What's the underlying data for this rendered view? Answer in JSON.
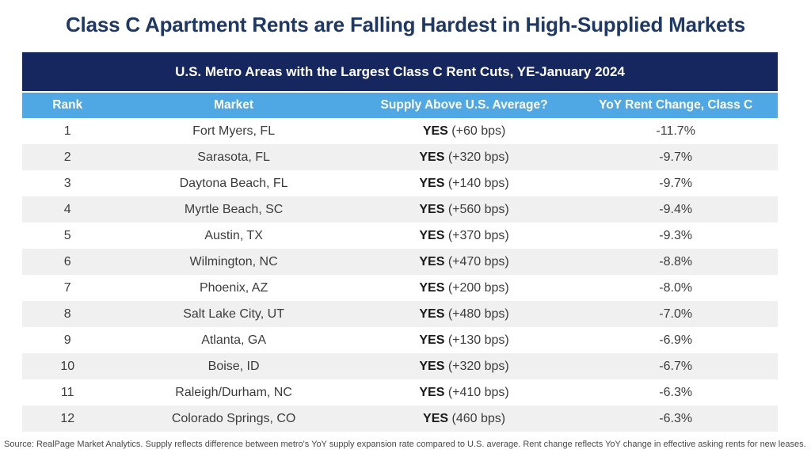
{
  "title": "Class C Apartment Rents are Falling Hardest in High-Supplied Markets",
  "footer": "Source: RealPage Market Analytics. Supply reflects difference between metro's YoY supply expansion rate compared to U.S. average. Rent change reflects YoY change in effective asking rents for new leases.",
  "colors": {
    "title_text": "#1F3864",
    "navy_header_bg": "#16265E",
    "blue_column_header_bg": "#4FA8E3",
    "alt_row_bg": "#F0F0F0",
    "body_text": "#3C3C3C"
  },
  "chart_data": {
    "type": "table",
    "title": "U.S. Metro Areas with the Largest Class C Rent Cuts, YE-January 2024",
    "columns": [
      "Rank",
      "Market",
      "Supply Above U.S. Average?",
      "YoY Rent Change, Class C"
    ],
    "rows": [
      {
        "rank": "1",
        "market": "Fort Myers, FL",
        "supply_flag": "YES",
        "supply_detail": "(+60 bps)",
        "yoy_rent_change": "-11.7%"
      },
      {
        "rank": "2",
        "market": "Sarasota, FL",
        "supply_flag": "YES",
        "supply_detail": "(+320 bps)",
        "yoy_rent_change": "-9.7%"
      },
      {
        "rank": "3",
        "market": "Daytona Beach, FL",
        "supply_flag": "YES",
        "supply_detail": "(+140 bps)",
        "yoy_rent_change": "-9.7%"
      },
      {
        "rank": "4",
        "market": "Myrtle Beach, SC",
        "supply_flag": "YES",
        "supply_detail": "(+560 bps)",
        "yoy_rent_change": "-9.4%"
      },
      {
        "rank": "5",
        "market": "Austin, TX",
        "supply_flag": "YES",
        "supply_detail": "(+370 bps)",
        "yoy_rent_change": "-9.3%"
      },
      {
        "rank": "6",
        "market": "Wilmington, NC",
        "supply_flag": "YES",
        "supply_detail": "(+470 bps)",
        "yoy_rent_change": "-8.8%"
      },
      {
        "rank": "7",
        "market": "Phoenix, AZ",
        "supply_flag": "YES",
        "supply_detail": "(+200 bps)",
        "yoy_rent_change": "-8.0%"
      },
      {
        "rank": "8",
        "market": "Salt Lake City, UT",
        "supply_flag": "YES",
        "supply_detail": "(+480 bps)",
        "yoy_rent_change": "-7.0%"
      },
      {
        "rank": "9",
        "market": "Atlanta, GA",
        "supply_flag": "YES",
        "supply_detail": "(+130 bps)",
        "yoy_rent_change": "-6.9%"
      },
      {
        "rank": "10",
        "market": "Boise, ID",
        "supply_flag": "YES",
        "supply_detail": "(+320 bps)",
        "yoy_rent_change": "-6.7%"
      },
      {
        "rank": "11",
        "market": "Raleigh/Durham, NC",
        "supply_flag": "YES",
        "supply_detail": "(+410 bps)",
        "yoy_rent_change": "-6.3%"
      },
      {
        "rank": "12",
        "market": "Colorado Springs, CO",
        "supply_flag": "YES",
        "supply_detail": "(460 bps)",
        "yoy_rent_change": "-6.3%"
      }
    ]
  }
}
